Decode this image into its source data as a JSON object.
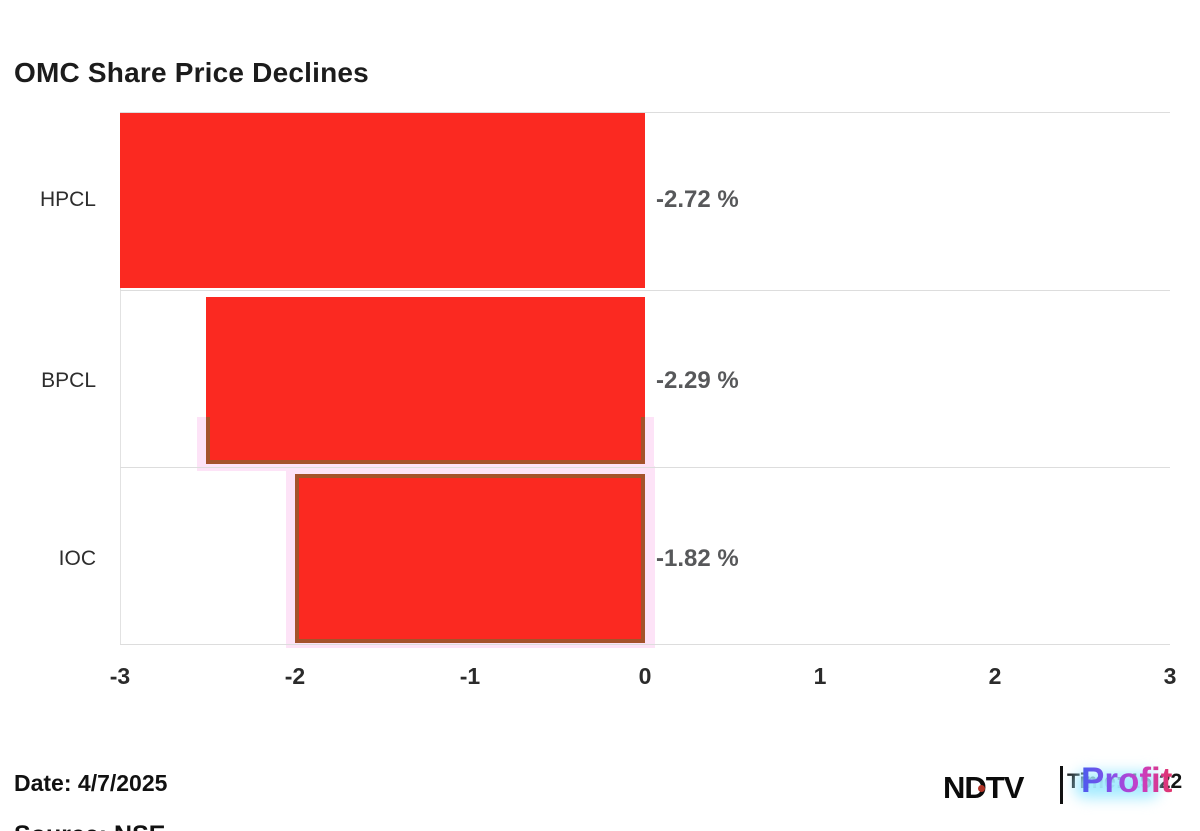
{
  "title": "OMC Share Price Declines",
  "footer": {
    "date_label": "Date: 4/7/2025",
    "source_label": "Source: NSE",
    "time_label": "Time: 15:22"
  },
  "logo": {
    "ndtv": "NDTV",
    "profit": "Profit"
  },
  "colors": {
    "bar_red": "#FB2921",
    "highlight_border_brown": "#A4532B",
    "highlight_halo_pink": "#FDE3F7",
    "gridline": "#DDDDDD",
    "value_label_gray": "#57585A",
    "text_black": "#1B1B1B",
    "logo_glow_cyan": "#A5EBFF"
  },
  "chart_data": {
    "type": "bar",
    "orientation": "horizontal",
    "title": "OMC Share Price Declines",
    "categories": [
      "HPCL",
      "BPCL",
      "IOC"
    ],
    "values": [
      -2.72,
      -2.29,
      -1.82
    ],
    "value_labels": [
      "-2.72 %",
      "-2.29 %",
      "-1.82 %"
    ],
    "xlabel": "",
    "ylabel": "",
    "xlim": [
      -3,
      3
    ],
    "xticks": [
      "-3",
      "-2",
      "-1",
      "0",
      "1",
      "2",
      "3"
    ],
    "grid": "horizontal-row-separators",
    "legend": "none",
    "bars": [
      {
        "category": "HPCL",
        "value": -2.72,
        "label": "-2.72 %",
        "draw_start_axis": -3.0,
        "highlight": "none",
        "top_offset": 1,
        "bottom_gap": 2
      },
      {
        "category": "BPCL",
        "value": -2.29,
        "label": "-2.29 %",
        "draw_start_axis": -2.51,
        "highlight": "bottom-edge",
        "top_offset": 7,
        "bottom_gap": 3
      },
      {
        "category": "IOC",
        "value": -1.82,
        "label": "-1.82 %",
        "draw_start_axis": -2.0,
        "highlight": "full-border",
        "top_offset": 7,
        "bottom_gap": 2
      }
    ]
  }
}
